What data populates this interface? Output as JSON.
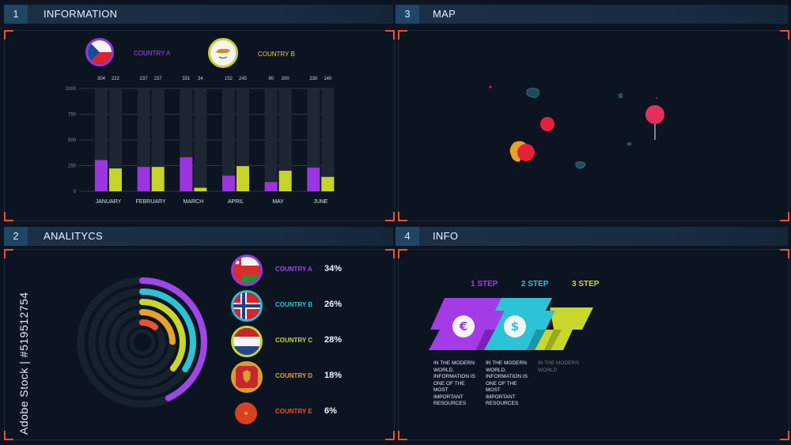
{
  "panels": {
    "information": {
      "number": "1",
      "title": "INFORMATION"
    },
    "map": {
      "number": "3",
      "title": "MAP"
    },
    "analytics": {
      "number": "2",
      "title": "ANALITYCS"
    },
    "info": {
      "number": "4",
      "title": "INFO"
    }
  },
  "colors": {
    "purple": "#9a35e0",
    "lime": "#c4d42a",
    "cyan": "#28bfd4",
    "orange": "#e8542f",
    "red_marker": "#e8213a",
    "pink_marker": "#e0305e"
  },
  "information": {
    "legend": [
      {
        "label": "COUNTRY A",
        "flag": "czech-flag",
        "color": "#a050e8"
      },
      {
        "label": "COUNTRY B",
        "flag": "cyprus-flag",
        "color": "#d4dd30"
      }
    ],
    "chart_data": {
      "type": "bar",
      "categories": [
        "JANUARY",
        "FEBRUARY",
        "MARCH",
        "APRIL",
        "MAY",
        "JUNE"
      ],
      "series": [
        {
          "name": "COUNTRY A",
          "values": [
            304,
            237,
            331,
            152,
            90,
            230
          ]
        },
        {
          "name": "COUNTRY B",
          "values": [
            222,
            237,
            34,
            245,
            200,
            140
          ]
        }
      ],
      "value_labels": [
        [
          "304",
          "222"
        ],
        [
          "237",
          "237"
        ],
        [
          "331",
          "34"
        ],
        [
          "152",
          "245"
        ],
        [
          "90",
          "200"
        ],
        [
          "230",
          "140"
        ]
      ],
      "background_values": [
        1000,
        1000,
        1000,
        1000,
        1000,
        1000
      ],
      "yticks": [
        "1000",
        "750",
        "500",
        "250",
        "0"
      ],
      "ylim": [
        0,
        1000
      ],
      "grid": true
    }
  },
  "analytics": {
    "rows": [
      {
        "label": "COUNTRY A",
        "value": "34%",
        "flag": "oman-flag",
        "color": "#a046e6"
      },
      {
        "label": "COUNTRY B",
        "value": "26%",
        "flag": "norway-flag",
        "color": "#2fc2d6"
      },
      {
        "label": "COUNTRY C",
        "value": "28%",
        "flag": "netherlands-flag",
        "color": "#c9d62c"
      },
      {
        "label": "COUNTRY D",
        "value": "18%",
        "flag": "montenegro-flag",
        "color": "#e8a030"
      },
      {
        "label": "COUNTRY E",
        "value": "6%",
        "flag": "orange-flag",
        "color": "#e8542f"
      }
    ],
    "arc_values": [
      34,
      26,
      28,
      18,
      6
    ]
  },
  "info": {
    "steps": [
      {
        "label": "1 STEP",
        "icon": "euro-icon",
        "color": "#a33ce6",
        "desc": "IN THE MODERN WORLD, INFORMATION IS ONE OF THE MOST IMPORTANT RESOURCES"
      },
      {
        "label": "2 STEP",
        "icon": "dollar-icon",
        "color": "#2cc3d6",
        "desc": "IN THE MODERN WORLD, INFORMATION IS ONE OF THE MOST IMPORTANT RESOURCES"
      },
      {
        "label": "3 STEP",
        "icon": "",
        "color": "#c9d62c",
        "desc": "IN THE MODERN WORLD"
      }
    ]
  },
  "watermark": "Adobe Stock | #519512754"
}
